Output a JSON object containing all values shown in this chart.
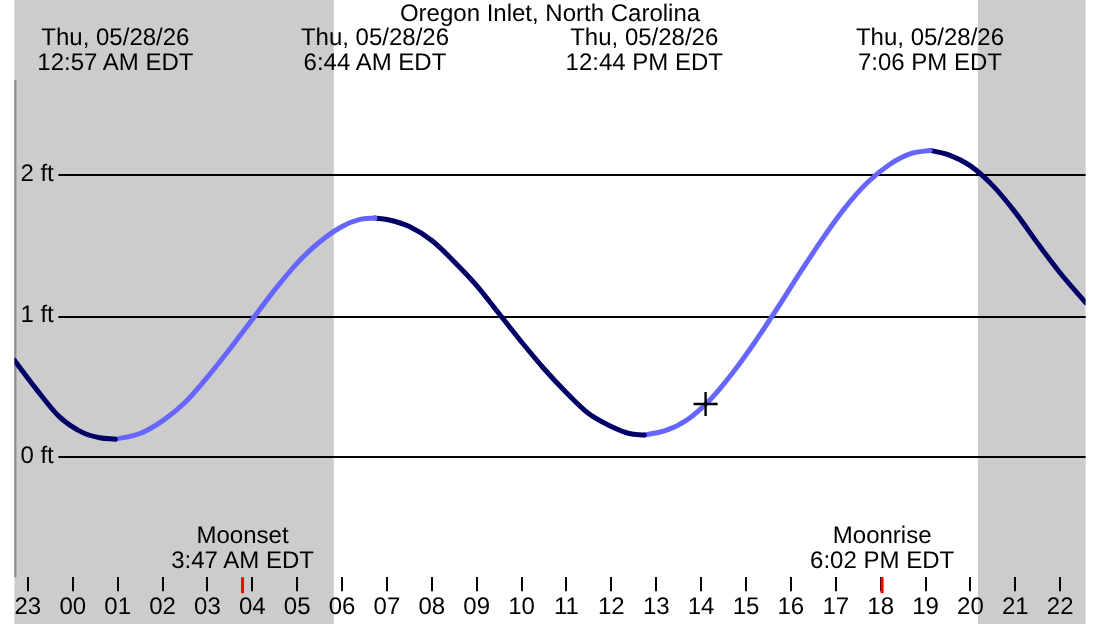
{
  "chart_data": {
    "type": "line",
    "title": "Oregon Inlet, North Carolina",
    "xlim": [
      "--05-27T22:42",
      "--05-28T22:34"
    ],
    "ylim": [
      -0.86,
      2.67
    ],
    "xticks": [
      {
        "value": "--05-27T23:00",
        "label": "23"
      },
      {
        "value": "--05-28T00:00",
        "label": "00"
      },
      {
        "value": "--05-28T01:00",
        "label": "01"
      },
      {
        "value": "--05-28T02:00",
        "label": "02"
      },
      {
        "value": "--05-28T03:00",
        "label": "03"
      },
      {
        "value": "--05-28T04:00",
        "label": "04"
      },
      {
        "value": "--05-28T05:00",
        "label": "05"
      },
      {
        "value": "--05-28T06:00",
        "label": "06"
      },
      {
        "value": "--05-28T07:00",
        "label": "07"
      },
      {
        "value": "--05-28T08:00",
        "label": "08"
      },
      {
        "value": "--05-28T09:00",
        "label": "09"
      },
      {
        "value": "--05-28T10:00",
        "label": "10"
      },
      {
        "value": "--05-28T11:00",
        "label": "11"
      },
      {
        "value": "--05-28T12:00",
        "label": "12"
      },
      {
        "value": "--05-28T13:00",
        "label": "13"
      },
      {
        "value": "--05-28T14:00",
        "label": "14"
      },
      {
        "value": "--05-28T15:00",
        "label": "15"
      },
      {
        "value": "--05-28T16:00",
        "label": "16"
      },
      {
        "value": "--05-28T17:00",
        "label": "17"
      },
      {
        "value": "--05-28T18:00",
        "label": "18"
      },
      {
        "value": "--05-28T19:00",
        "label": "19"
      },
      {
        "value": "--05-28T20:00",
        "label": "20"
      },
      {
        "value": "--05-28T21:00",
        "label": "21"
      },
      {
        "value": "--05-28T22:00",
        "label": "22"
      }
    ],
    "x2lim": [
      "--05-27T22:42",
      "--05-28T22:34"
    ],
    "x2ticks": [
      {
        "value": "--05-28T00:57",
        "label": "Thu, 05/28/26\n12:57 AM EDT"
      },
      {
        "value": "--05-28T06:44",
        "label": "Thu, 05/28/26\n6:44 AM EDT"
      },
      {
        "value": "--05-28T12:44",
        "label": "Thu, 05/28/26\n12:44 PM EDT"
      },
      {
        "value": "--05-28T19:06",
        "label": "Thu, 05/28/26\n7:06 PM EDT"
      }
    ],
    "yticks": [
      {
        "value": 0,
        "label": "0 ft"
      },
      {
        "value": 1,
        "label": "1 ft"
      },
      {
        "value": 2,
        "label": "2 ft"
      }
    ],
    "grid": "y",
    "legend": false,
    "marker": "none",
    "line_style": "solid",
    "series": [
      {
        "color": "#000066",
        "x": [
          "--05-27T22:42",
          "--05-27T23:12",
          "--05-27T23:42",
          "--05-28T00:12",
          "--05-28T00:36",
          "--05-28T00:57"
        ],
        "values": [
          0.68,
          0.47,
          0.28,
          0.17,
          0.13,
          0.12
        ]
      },
      {
        "color": "#6666ff",
        "x": [
          "--05-28T00:57",
          "--05-28T01:30",
          "--05-28T02:00",
          "--05-28T02:30",
          "--05-28T03:00",
          "--05-28T03:30",
          "--05-28T04:00",
          "--05-28T04:30",
          "--05-28T05:00",
          "--05-28T05:30",
          "--05-28T06:00",
          "--05-28T06:24",
          "--05-28T06:44"
        ],
        "values": [
          0.12,
          0.16,
          0.25,
          0.38,
          0.56,
          0.76,
          0.97,
          1.18,
          1.37,
          1.52,
          1.63,
          1.68,
          1.69
        ]
      },
      {
        "color": "#000066",
        "x": [
          "--05-28T06:44",
          "--05-28T07:00",
          "--05-28T07:30",
          "--05-28T08:00",
          "--05-28T08:30",
          "--05-28T09:00",
          "--05-28T09:30",
          "--05-28T10:00",
          "--05-28T10:30",
          "--05-28T11:00",
          "--05-28T11:30",
          "--05-28T12:00",
          "--05-28T12:24",
          "--05-28T12:44"
        ],
        "values": [
          1.69,
          1.68,
          1.63,
          1.53,
          1.38,
          1.21,
          1.01,
          0.81,
          0.62,
          0.45,
          0.3,
          0.21,
          0.16,
          0.15
        ]
      },
      {
        "color": "#6666ff",
        "x": [
          "--05-28T12:44",
          "--05-28T13:12",
          "--05-28T13:42",
          "--05-28T14:12",
          "--05-28T14:42",
          "--05-28T15:12",
          "--05-28T15:42",
          "--05-28T16:12",
          "--05-28T16:42",
          "--05-28T17:12",
          "--05-28T17:42",
          "--05-28T18:12",
          "--05-28T18:42",
          "--05-28T19:06"
        ],
        "values": [
          0.15,
          0.18,
          0.26,
          0.4,
          0.59,
          0.81,
          1.05,
          1.3,
          1.54,
          1.76,
          1.94,
          2.07,
          2.15,
          2.17
        ]
      },
      {
        "color": "#000066",
        "x": [
          "--05-28T19:06",
          "--05-28T19:30",
          "--05-28T20:00",
          "--05-28T20:30",
          "--05-28T21:00",
          "--05-28T21:30",
          "--05-28T22:00",
          "--05-28T22:34"
        ],
        "values": [
          2.17,
          2.14,
          2.06,
          1.92,
          1.73,
          1.51,
          1.3,
          1.09
        ]
      },
      {
        "type": "scatter",
        "marker": "cross",
        "color": "#000000",
        "x": [
          "--05-28T14:06"
        ],
        "values": [
          0.37
        ]
      }
    ],
    "bands": [
      {
        "axis": "x",
        "from": "--05-27T22:42",
        "to": "--05-28T05:49",
        "color": "#cccccc"
      },
      {
        "axis": "x",
        "from": "--05-28T20:10",
        "to": "--05-28T22:34",
        "color": "#cccccc"
      }
    ],
    "ref_lines": [
      {
        "axis": "x",
        "value": "--05-28T03:47",
        "label": "Moonset\n3:47 AM EDT",
        "color": "#ff0000"
      },
      {
        "axis": "x",
        "value": "--05-28T18:02",
        "label": "Moonrise\n6:02 PM EDT",
        "color": "#ff0000"
      }
    ]
  }
}
